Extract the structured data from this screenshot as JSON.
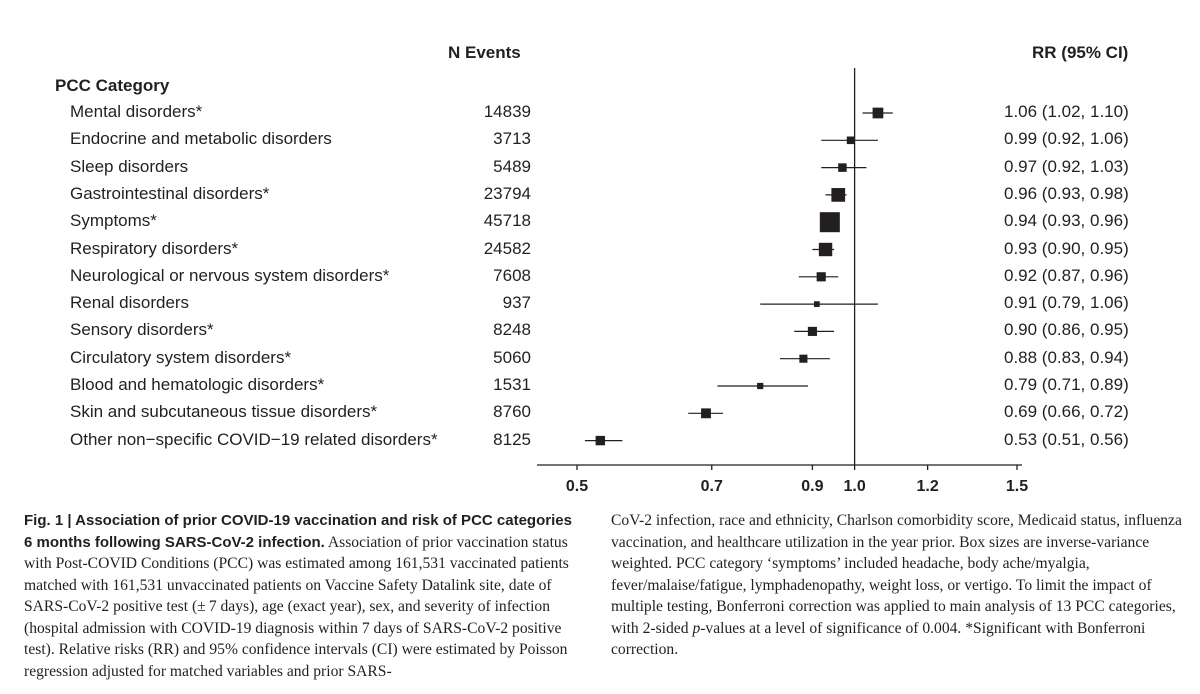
{
  "header": {
    "category_label": "PCC Category",
    "n_events_label": "N Events",
    "rr_label": "RR (95% CI)"
  },
  "chart_data": {
    "type": "forest",
    "title": "",
    "xlabel": "",
    "x_scale": "log",
    "xlim": [
      0.45,
      1.5
    ],
    "x_ticks": [
      0.5,
      0.7,
      0.9,
      1.0,
      1.2,
      1.5
    ],
    "x_tick_labels": [
      "0.5",
      "0.7",
      "0.9",
      "1.0",
      "1.2",
      "1.5"
    ],
    "reference_line": 1.0,
    "marker_color": "#231f20",
    "rows": [
      {
        "name": "Mental disorders*",
        "n": "14839",
        "rr": 1.06,
        "lo": 1.02,
        "hi": 1.1,
        "ci_text": "1.06 (1.02, 1.10)"
      },
      {
        "name": "Endocrine and metabolic disorders",
        "n": "3713",
        "rr": 0.99,
        "lo": 0.92,
        "hi": 1.06,
        "ci_text": "0.99 (0.92, 1.06)"
      },
      {
        "name": "Sleep disorders",
        "n": "5489",
        "rr": 0.97,
        "lo": 0.92,
        "hi": 1.03,
        "ci_text": "0.97 (0.92, 1.03)"
      },
      {
        "name": "Gastrointestinal disorders*",
        "n": "23794",
        "rr": 0.96,
        "lo": 0.93,
        "hi": 0.98,
        "ci_text": "0.96 (0.93, 0.98)"
      },
      {
        "name": "Symptoms*",
        "n": "45718",
        "rr": 0.94,
        "lo": 0.93,
        "hi": 0.96,
        "ci_text": "0.94 (0.93, 0.96)"
      },
      {
        "name": "Respiratory disorders*",
        "n": "24582",
        "rr": 0.93,
        "lo": 0.9,
        "hi": 0.95,
        "ci_text": "0.93 (0.90, 0.95)"
      },
      {
        "name": "Neurological or nervous system disorders*",
        "n": "7608",
        "rr": 0.92,
        "lo": 0.87,
        "hi": 0.96,
        "ci_text": "0.92 (0.87, 0.96)"
      },
      {
        "name": "Renal disorders",
        "n": "937",
        "rr": 0.91,
        "lo": 0.79,
        "hi": 1.06,
        "ci_text": "0.91 (0.79, 1.06)"
      },
      {
        "name": "Sensory disorders*",
        "n": "8248",
        "rr": 0.9,
        "lo": 0.86,
        "hi": 0.95,
        "ci_text": "0.90 (0.86, 0.95)"
      },
      {
        "name": "Circulatory system disorders*",
        "n": "5060",
        "rr": 0.88,
        "lo": 0.83,
        "hi": 0.94,
        "ci_text": "0.88 (0.83, 0.94)"
      },
      {
        "name": "Blood and hematologic disorders*",
        "n": "1531",
        "rr": 0.79,
        "lo": 0.71,
        "hi": 0.89,
        "ci_text": "0.79 (0.71, 0.89)"
      },
      {
        "name": "Skin and subcutaneous tissue disorders*",
        "n": "8760",
        "rr": 0.69,
        "lo": 0.66,
        "hi": 0.72,
        "ci_text": "0.69 (0.66, 0.72)"
      },
      {
        "name": "Other non−specific COVID−19 related disorders*",
        "n": "8125",
        "rr": 0.53,
        "lo": 0.51,
        "hi": 0.56,
        "ci_text": "0.53 (0.51, 0.56)"
      }
    ]
  },
  "caption": {
    "fig_label": "Fig. 1 | Association of prior COVID-19 vaccination and risk of PCC categories 6 months following SARS-CoV-2 infection.",
    "col1_text": " Association of prior vaccination status with Post-COVID Conditions (PCC) was estimated among 161,531 vaccinated patients matched with 161,531 unvaccinated patients on Vaccine Safety Datalink site, date of SARS-CoV-2 positive test (± 7 days), age (exact year), sex, and severity of infection (hospital admission with COVID-19 diagnosis within 7 days of SARS-CoV-2 positive test). Relative risks (RR) and 95% confidence intervals (CI) were estimated by Poisson regression adjusted for matched variables and prior SARS-",
    "col2_text_a": "CoV-2 infection, race and ethnicity, Charlson comorbidity score, Medicaid status, influenza vaccination, and healthcare utilization in the year prior. Box sizes are inverse-variance weighted. PCC category ‘symptoms’ included headache, body ache/myalgia, fever/malaise/fatigue, lymphadenopathy, weight loss, or vertigo. To limit the impact of multiple testing, Bonferroni correction was applied to main analysis of 13 PCC categories, with 2-sided ",
    "col2_p": "p",
    "col2_text_b": "-values at a level of significance of 0.004. *Significant with Bonferroni correction."
  }
}
